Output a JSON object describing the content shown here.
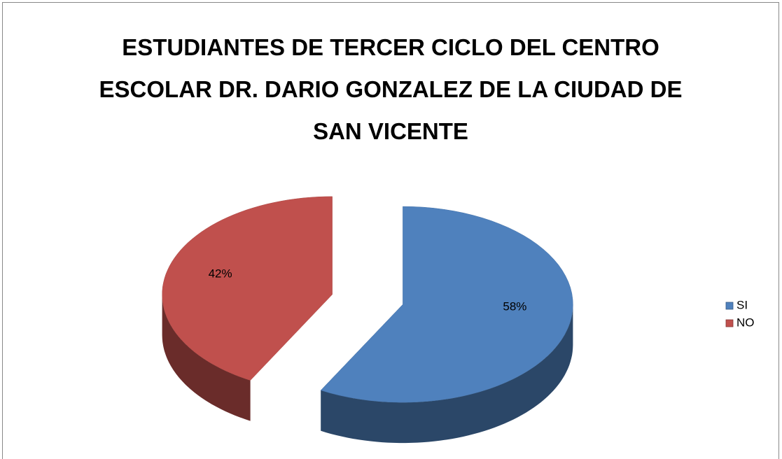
{
  "chart_data": {
    "type": "pie",
    "title": "ESTUDIANTES DE TERCER CICLO DEL CENTRO ESCOLAR DR. DARIO GONZALEZ DE LA CIUDAD DE SAN VICENTE",
    "categories": [
      "SI",
      "NO"
    ],
    "values": [
      58,
      42
    ],
    "value_labels": [
      "58%",
      "42%"
    ],
    "colors": [
      "#4f81bd",
      "#c0504d"
    ],
    "legend": "right"
  }
}
